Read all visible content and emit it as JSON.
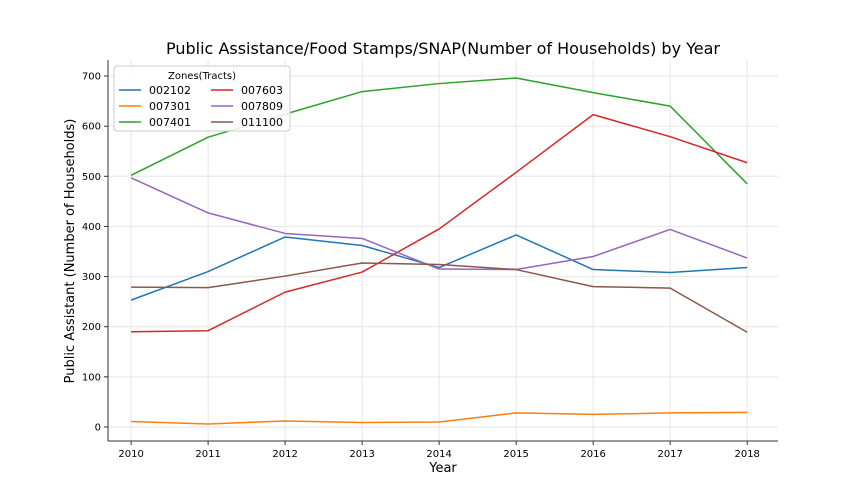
{
  "chart_data": {
    "type": "line",
    "title": "Public Assistance/Food Stamps/SNAP(Number of Households) by Year",
    "xlabel": "Year",
    "ylabel": "Public Assistant (Number of Households)",
    "x": [
      2010,
      2011,
      2012,
      2013,
      2014,
      2015,
      2016,
      2017,
      2018
    ],
    "xlim": [
      2009.7,
      2018.4
    ],
    "ylim": [
      -28,
      732
    ],
    "yticks": [
      0,
      100,
      200,
      300,
      400,
      500,
      600,
      700
    ],
    "grid": true,
    "legend": {
      "title": "Zones(Tracts)",
      "placement": "top-left",
      "columns": 2
    },
    "series": [
      {
        "name": "002102",
        "color": "#1f77b4",
        "values": [
          253,
          310,
          379,
          362,
          318,
          383,
          314,
          308,
          318
        ]
      },
      {
        "name": "007301",
        "color": "#ff7f0e",
        "values": [
          11,
          6,
          12,
          9,
          10,
          28,
          25,
          28,
          29
        ]
      },
      {
        "name": "007401",
        "color": "#2ca02c",
        "values": [
          502,
          578,
          624,
          669,
          685,
          696,
          667,
          640,
          485
        ]
      },
      {
        "name": "007603",
        "color": "#d62728",
        "values": [
          190,
          192,
          269,
          309,
          395,
          508,
          623,
          579,
          527
        ]
      },
      {
        "name": "007809",
        "color": "#9467bd",
        "values": [
          497,
          427,
          386,
          376,
          315,
          314,
          340,
          394,
          337
        ]
      },
      {
        "name": "011100",
        "color": "#8c564b",
        "values": [
          279,
          278,
          301,
          327,
          324,
          314,
          280,
          277,
          189
        ]
      }
    ]
  }
}
